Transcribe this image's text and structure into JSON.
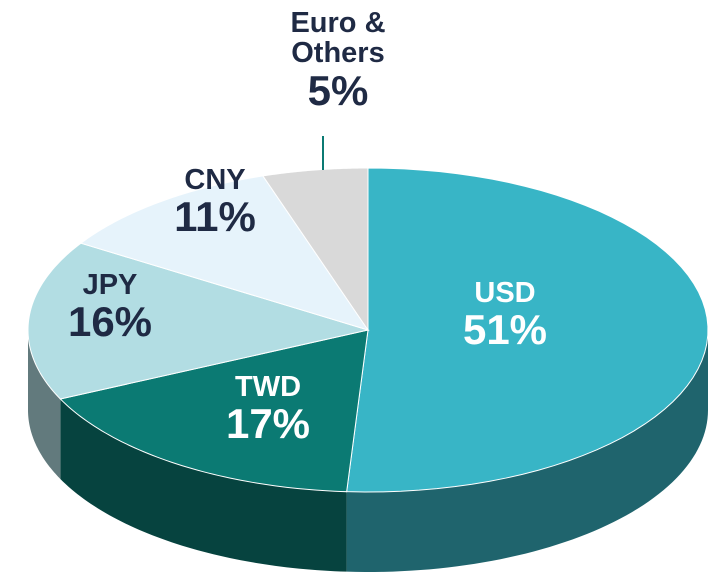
{
  "chart_data": {
    "type": "pie",
    "categories": [
      "USD",
      "TWD",
      "JPY",
      "CNY",
      "Euro & Others"
    ],
    "values": [
      51,
      17,
      16,
      11,
      5
    ],
    "value_labels": [
      "51%",
      "17%",
      "16%",
      "11%",
      "5%"
    ],
    "colors": [
      "#38b5c6",
      "#0b7a73",
      "#b2dde3",
      "#e6f3fb",
      "#d9d9d9"
    ]
  }
}
